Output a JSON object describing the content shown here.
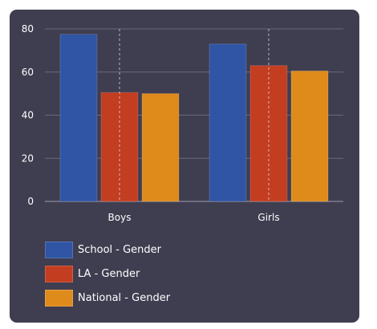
{
  "chart_data": {
    "type": "bar",
    "categories": [
      "Boys",
      "Girls"
    ],
    "series": [
      {
        "name": "School - Gender",
        "values": [
          77.5,
          73
        ],
        "color": "#2f55a4"
      },
      {
        "name": "LA - Gender",
        "values": [
          50.5,
          63
        ],
        "color": "#c33d20"
      },
      {
        "name": "National - Gender",
        "values": [
          50,
          60.5
        ],
        "color": "#df8b1b"
      }
    ],
    "y_ticks": [
      0,
      20,
      40,
      60,
      80
    ],
    "ylim": [
      0,
      80
    ],
    "grid": true,
    "legend_position": "bottom-left",
    "background": "#3f3d50",
    "title": "",
    "xlabel": "",
    "ylabel": ""
  }
}
